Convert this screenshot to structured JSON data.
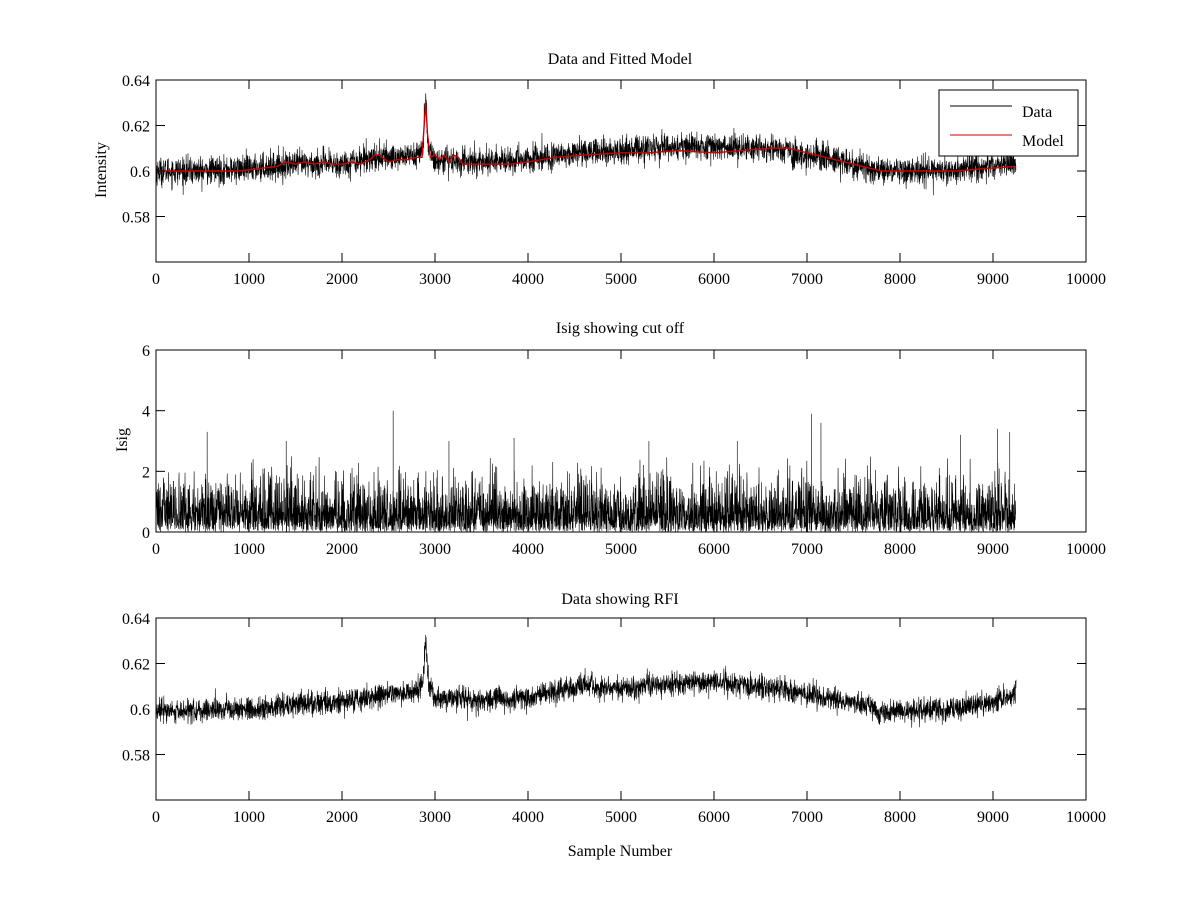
{
  "chart_data": [
    {
      "type": "line",
      "title": "Data and Fitted Model",
      "xlabel": "",
      "ylabel": "Intensity",
      "xlim": [
        0,
        10000
      ],
      "ylim": [
        0.56,
        0.64
      ],
      "xticks": [
        0,
        1000,
        2000,
        3000,
        4000,
        5000,
        6000,
        7000,
        8000,
        9000,
        10000
      ],
      "yticks": [
        0.58,
        0.6,
        0.62,
        0.64
      ],
      "ytick_labels": [
        "0.58",
        "0.6",
        "0.62",
        "0.64"
      ],
      "grid": false,
      "legend_position": "top-right",
      "legend": [
        "Data",
        "Model"
      ],
      "series": [
        {
          "name": "Data",
          "color": "#000000",
          "style": "noisy",
          "n_points": 9250,
          "noise_amplitude": 0.006,
          "baseline": {
            "x": [
              0,
              500,
              1000,
              1500,
              2000,
              2300,
              2500,
              2800,
              2900,
              3000,
              3500,
              4000,
              4500,
              5000,
              5500,
              6000,
              6500,
              7000,
              7500,
              7800,
              8000,
              8500,
              9000,
              9250
            ],
            "y": [
              0.6,
              0.6,
              0.601,
              0.603,
              0.603,
              0.606,
              0.606,
              0.607,
              0.612,
              0.605,
              0.604,
              0.605,
              0.608,
              0.609,
              0.61,
              0.611,
              0.61,
              0.607,
              0.603,
              0.6,
              0.6,
              0.6,
              0.602,
              0.604
            ]
          },
          "spike": {
            "x": 2900,
            "y": 0.635
          }
        },
        {
          "name": "Model",
          "color": "#cc0000",
          "style": "smooth",
          "x": [
            0,
            300,
            600,
            900,
            1100,
            1300,
            1400,
            1500,
            1600,
            1700,
            1800,
            1900,
            2000,
            2100,
            2200,
            2300,
            2350,
            2400,
            2500,
            2600,
            2700,
            2800,
            2860,
            2880,
            2900,
            2920,
            2950,
            3000,
            3050,
            3100,
            3150,
            3200,
            3250,
            3300,
            3500,
            3800,
            4000,
            4300,
            4600,
            5000,
            5300,
            5600,
            6000,
            6300,
            6600,
            6800,
            7000,
            7200,
            7400,
            7600,
            7800,
            8000,
            8300,
            8600,
            8900,
            9250
          ],
          "y": [
            0.6,
            0.6,
            0.6,
            0.6,
            0.601,
            0.602,
            0.604,
            0.603,
            0.604,
            0.603,
            0.604,
            0.603,
            0.603,
            0.604,
            0.603,
            0.605,
            0.607,
            0.607,
            0.604,
            0.605,
            0.605,
            0.606,
            0.606,
            0.618,
            0.63,
            0.616,
            0.606,
            0.607,
            0.605,
            0.607,
            0.604,
            0.607,
            0.606,
            0.603,
            0.603,
            0.603,
            0.604,
            0.606,
            0.607,
            0.608,
            0.608,
            0.609,
            0.608,
            0.609,
            0.61,
            0.61,
            0.608,
            0.606,
            0.604,
            0.602,
            0.6,
            0.6,
            0.6,
            0.6,
            0.601,
            0.602
          ]
        }
      ]
    },
    {
      "type": "line",
      "title": "Isig showing cut off",
      "xlabel": "",
      "ylabel": "Isig",
      "xlim": [
        0,
        10000
      ],
      "ylim": [
        0,
        6
      ],
      "xticks": [
        0,
        1000,
        2000,
        3000,
        4000,
        5000,
        6000,
        7000,
        8000,
        9000,
        10000
      ],
      "yticks": [
        0,
        2,
        4,
        6
      ],
      "ytick_labels": [
        "0",
        "2",
        "4",
        "6"
      ],
      "grid": false,
      "series": [
        {
          "color": "#000000",
          "style": "abs-noise",
          "n_points": 9250,
          "typical_max": 2.5,
          "peaks": [
            {
              "x": 550,
              "y": 3.3
            },
            {
              "x": 1400,
              "y": 3.0
            },
            {
              "x": 2550,
              "y": 4.0
            },
            {
              "x": 3150,
              "y": 3.0
            },
            {
              "x": 3850,
              "y": 3.1
            },
            {
              "x": 5300,
              "y": 3.0
            },
            {
              "x": 6250,
              "y": 3.0
            },
            {
              "x": 7050,
              "y": 3.9
            },
            {
              "x": 7150,
              "y": 3.6
            },
            {
              "x": 8650,
              "y": 3.2
            },
            {
              "x": 9050,
              "y": 3.4
            },
            {
              "x": 9180,
              "y": 3.3
            }
          ]
        }
      ]
    },
    {
      "type": "line",
      "title": "Data showing RFI",
      "xlabel": "Sample Number",
      "ylabel": "",
      "xlim": [
        0,
        10000
      ],
      "ylim": [
        0.56,
        0.64
      ],
      "xticks": [
        0,
        1000,
        2000,
        3000,
        4000,
        5000,
        6000,
        7000,
        8000,
        9000,
        10000
      ],
      "yticks": [
        0.58,
        0.6,
        0.62,
        0.64
      ],
      "ytick_labels": [
        "0.58",
        "0.6",
        "0.62",
        "0.64"
      ],
      "grid": false,
      "series": [
        {
          "color": "#000000",
          "style": "noisy",
          "n_points": 9250,
          "noise_amplitude": 0.005,
          "baseline": {
            "x": [
              0,
              500,
              1000,
              1500,
              2000,
              2300,
              2500,
              2800,
              2900,
              3000,
              3500,
              4000,
              4500,
              5000,
              5500,
              6000,
              6500,
              7000,
              7500,
              7800,
              8000,
              8500,
              9000,
              9250
            ],
            "y": [
              0.599,
              0.599,
              0.6,
              0.602,
              0.603,
              0.605,
              0.607,
              0.607,
              0.612,
              0.605,
              0.604,
              0.605,
              0.61,
              0.609,
              0.611,
              0.612,
              0.61,
              0.606,
              0.603,
              0.599,
              0.599,
              0.6,
              0.603,
              0.607
            ]
          },
          "spike": {
            "x": 2900,
            "y": 0.635
          }
        }
      ]
    }
  ]
}
